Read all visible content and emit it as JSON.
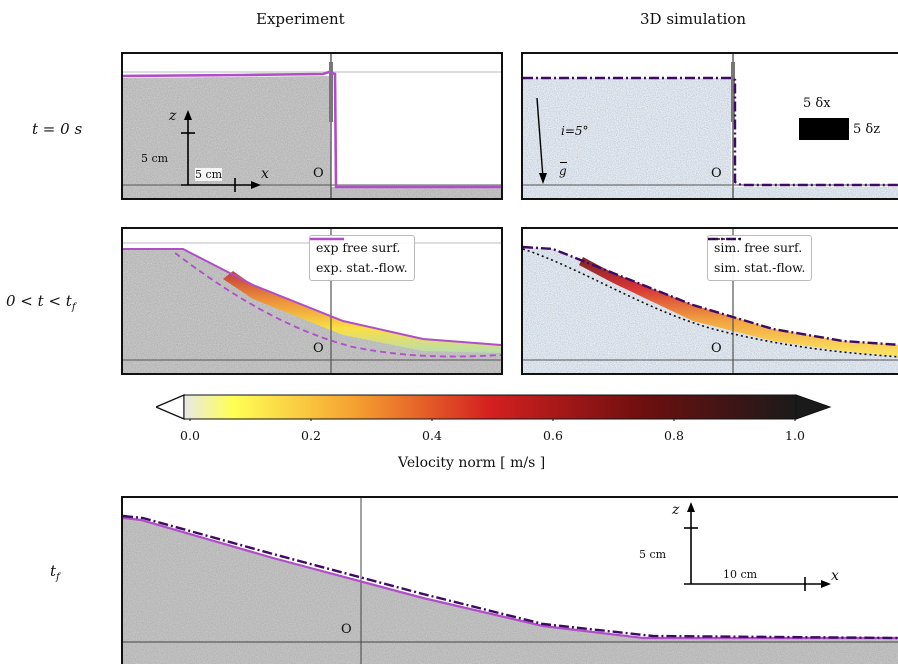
{
  "columns": {
    "experiment": "Experiment",
    "simulation": "3D simulation"
  },
  "rows": {
    "t0": "t = 0 s",
    "tmid": "0 < t < t",
    "tmid_sub": "f",
    "tf": "t",
    "tf_sub": "f"
  },
  "panel_t0_exp": {
    "axis_z": "z",
    "axis_x": "x",
    "scale_z": "5 cm",
    "scale_x": "5 cm",
    "origin": "O"
  },
  "panel_t0_sim": {
    "slope": "i=5°",
    "gravity": "g",
    "origin": "O",
    "cell_dx": "5 δx",
    "cell_dz": "5 δz"
  },
  "panel_mid_exp": {
    "origin": "O",
    "legend": [
      "exp free surf.",
      "exp. stat.-flow."
    ]
  },
  "panel_mid_sim": {
    "origin": "O",
    "legend": [
      "sim. free surf.",
      "sim. stat.-flow."
    ]
  },
  "panel_tf": {
    "origin": "O",
    "axis_z": "z",
    "axis_x": "x",
    "scale_z": "5 cm",
    "scale_x": "10 cm"
  },
  "colorbar": {
    "label": "Velocity norm [ m/s ]",
    "ticks": [
      "0.0",
      "0.2",
      "0.4",
      "0.6",
      "0.8",
      "1.0"
    ],
    "range": [
      0.0,
      1.0
    ],
    "colormap": [
      "#e8e8e8",
      "#ffff55",
      "#f5a030",
      "#d42020",
      "#6e0f0f",
      "#1a1a1a"
    ]
  },
  "colors": {
    "exp_line": "#b04ec8",
    "sim_line": "#3e0a66",
    "stat_line": "#111111"
  }
}
